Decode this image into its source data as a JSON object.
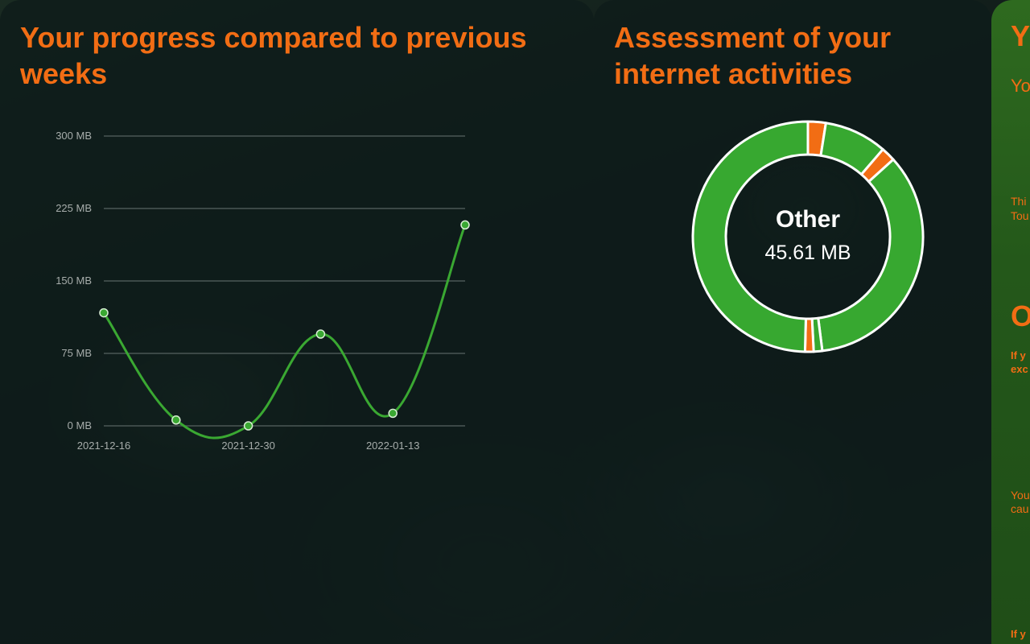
{
  "progress_panel": {
    "title": "Your progress compared to previous weeks"
  },
  "assessment_panel": {
    "title": "Assessment of your internet activities",
    "donut": {
      "center_label": "Other",
      "center_value": "45.61 MB"
    }
  },
  "right_panel": {
    "heading": "Y",
    "subheading": "Yo",
    "text1_line1": "Thi",
    "text1_line2": "Tou",
    "section_heading": "O",
    "text2_line1": "If y",
    "text2_line2": "exc",
    "text3_line1": "You",
    "text3_line2": "cau",
    "text4_line1": "If y"
  },
  "colors": {
    "accent_orange": "#f26d14",
    "line_green": "#3aa832",
    "donut_green": "#37a830",
    "donut_orange": "#f26d14"
  },
  "chart_data": [
    {
      "type": "line",
      "title": "Your progress compared to previous weeks",
      "xlabel": "",
      "ylabel": "",
      "x": [
        "2021-12-16",
        "2021-12-23",
        "2021-12-30",
        "2022-01-06",
        "2022-01-13",
        "2022-01-20"
      ],
      "x_tick_labels": [
        "2021-12-16",
        "2021-12-30",
        "2022-01-13"
      ],
      "y_tick_labels": [
        "300 MB",
        "225 MB",
        "150 MB",
        "75 MB",
        "0 MB"
      ],
      "y_ticks": [
        300,
        225,
        150,
        75,
        0
      ],
      "ylim": [
        0,
        300
      ],
      "grid": true,
      "series": [
        {
          "values": [
            117,
            6,
            0,
            95,
            13,
            208
          ]
        }
      ]
    },
    {
      "type": "pie",
      "title": "Assessment of your internet activities",
      "slices": [
        {
          "label": "",
          "value": 2.5,
          "color": "#f26d14"
        },
        {
          "label": "",
          "value": 8.8,
          "color": "#37a830"
        },
        {
          "label": "",
          "value": 2.0,
          "color": "#f26d14"
        },
        {
          "label": "Other",
          "value": 34.7,
          "color": "#37a830"
        },
        {
          "label": "",
          "value": 1.2,
          "color": "#37a830"
        },
        {
          "label": "",
          "value": 1.2,
          "color": "#f26d14"
        },
        {
          "label": "",
          "value": 49.6,
          "color": "#37a830"
        }
      ]
    }
  ]
}
